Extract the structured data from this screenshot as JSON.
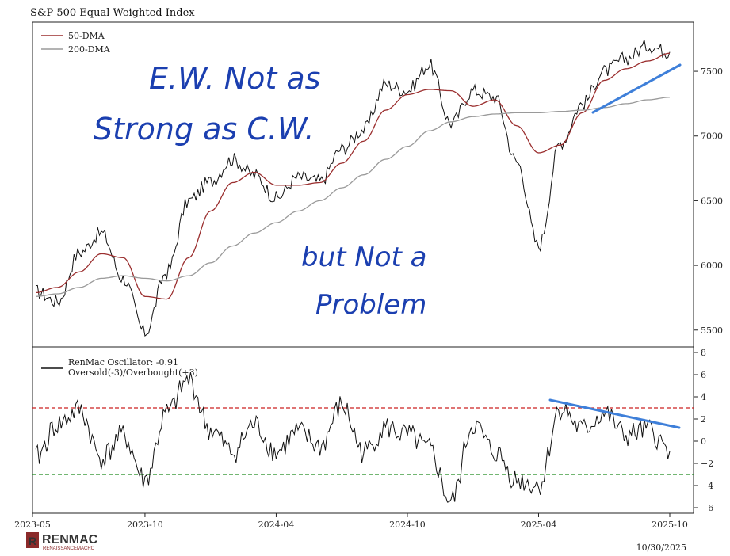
{
  "chart_data": [
    {
      "type": "line",
      "title": "S&P 500 Equal Weighted Index",
      "xlabel": "",
      "ylabel": "",
      "x_ticks": [
        "2023-05",
        "2023-10",
        "2024-04",
        "2024-10",
        "2025-04",
        "2025-10"
      ],
      "y_ticks": [
        5500,
        6000,
        6500,
        7000,
        7500
      ],
      "ylim": [
        5370,
        7880
      ],
      "legend": {
        "position": "top-left",
        "entries": [
          "50-DMA",
          "200-DMA"
        ]
      },
      "colors": {
        "price": "#111111",
        "dma50": "#9b2f2f",
        "dma200": "#9a9a9a",
        "trend": "#3e7fd9"
      },
      "x": [
        "2023-05",
        "2023-06",
        "2023-07",
        "2023-08",
        "2023-09",
        "2023-10",
        "2023-11",
        "2023-12",
        "2024-01",
        "2024-02",
        "2024-03",
        "2024-04",
        "2024-05",
        "2024-06",
        "2024-07",
        "2024-08",
        "2024-09",
        "2024-10",
        "2024-11",
        "2024-12",
        "2025-01",
        "2025-02",
        "2025-03",
        "2025-04",
        "2025-05",
        "2025-06",
        "2025-07",
        "2025-08",
        "2025-09",
        "2025-10"
      ],
      "series": [
        {
          "name": "S&P 500 Equal Weighted Index",
          "values": [
            5800,
            5720,
            6100,
            6250,
            5900,
            5480,
            5950,
            6500,
            6650,
            6820,
            6700,
            6520,
            6680,
            6650,
            6900,
            7050,
            7400,
            7350,
            7550,
            7100,
            7350,
            7300,
            6800,
            6150,
            6950,
            7250,
            7500,
            7600,
            7700,
            7650
          ]
        },
        {
          "name": "50-DMA",
          "values": [
            5790,
            5830,
            5950,
            6090,
            6060,
            5760,
            5740,
            6060,
            6420,
            6640,
            6720,
            6620,
            6620,
            6640,
            6790,
            6960,
            7200,
            7320,
            7360,
            7350,
            7230,
            7280,
            7080,
            6870,
            6930,
            7180,
            7430,
            7520,
            7580,
            7640
          ]
        },
        {
          "name": "200-DMA",
          "values": [
            5760,
            5780,
            5830,
            5900,
            5920,
            5900,
            5880,
            5920,
            6020,
            6150,
            6250,
            6330,
            6420,
            6500,
            6600,
            6700,
            6820,
            6920,
            7040,
            7110,
            7150,
            7170,
            7180,
            7180,
            7190,
            7200,
            7220,
            7250,
            7280,
            7300
          ]
        }
      ]
    },
    {
      "type": "line",
      "title": "",
      "y_ticks": [
        -6,
        -4,
        -2,
        0,
        2,
        4,
        6,
        8
      ],
      "ylim": [
        -6.5,
        8.5
      ],
      "legend": {
        "position": "top-left",
        "entries": [
          "RenMac Oscillator: -0.91",
          "Oversold(-3)/Overbought(+3)"
        ]
      },
      "reference_lines": [
        {
          "value": 3,
          "color": "#cc2222"
        },
        {
          "value": -3,
          "color": "#1f8a1f"
        }
      ],
      "x": [
        "2023-05",
        "2023-06",
        "2023-07",
        "2023-08",
        "2023-09",
        "2023-10",
        "2023-11",
        "2023-12",
        "2024-01",
        "2024-02",
        "2024-03",
        "2024-04",
        "2024-05",
        "2024-06",
        "2024-07",
        "2024-08",
        "2024-09",
        "2024-10",
        "2024-11",
        "2024-12",
        "2025-01",
        "2025-02",
        "2025-03",
        "2025-04",
        "2025-05",
        "2025-06",
        "2025-07",
        "2025-08",
        "2025-09",
        "2025-10"
      ],
      "series": [
        {
          "name": "RenMac Oscillator",
          "values": [
            -1.5,
            1.5,
            2.8,
            -1.5,
            0.5,
            -3.5,
            2.5,
            5.5,
            1.0,
            -1.0,
            1.5,
            -1.0,
            0.8,
            -0.5,
            3.2,
            -1.0,
            1.2,
            0.5,
            -0.8,
            -5.5,
            1.5,
            -1.0,
            -3.5,
            -4.0,
            3.0,
            1.0,
            2.5,
            0.5,
            1.0,
            -0.91
          ]
        }
      ]
    }
  ],
  "annotations": {
    "note1_line1": "E.W. Not as",
    "note1_line2": "Strong as C.W.",
    "note2_line1": "but Not a",
    "note2_line2": "Problem"
  },
  "footer": {
    "logo_main": "RENMAC",
    "logo_sub": "RENAISSANCEMACRO",
    "date": "10/30/2025"
  }
}
